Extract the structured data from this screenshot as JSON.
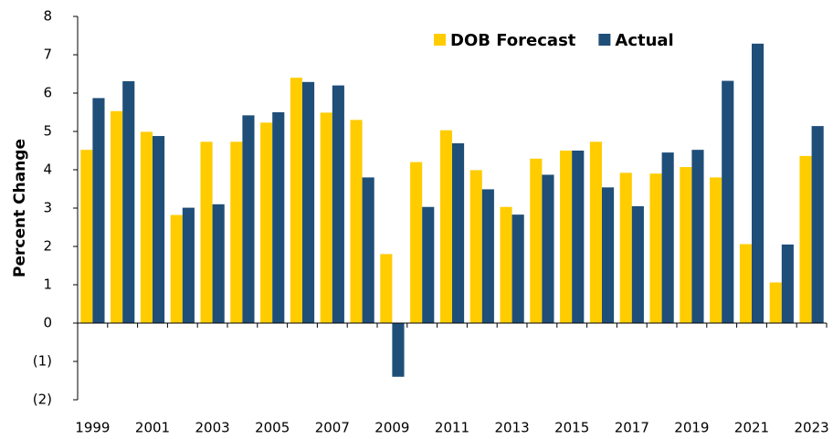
{
  "chart_data": {
    "type": "bar",
    "y_label": "Percent Change",
    "categories": [
      "1999",
      null,
      "2001",
      null,
      "2003",
      null,
      "2005",
      null,
      "2007",
      null,
      "2009",
      null,
      "2011",
      null,
      "2013",
      null,
      "2015",
      null,
      "2017",
      null,
      "2019",
      null,
      "2021",
      null,
      "2023"
    ],
    "series": [
      {
        "name": "DOB Forecast",
        "color": "#ffcc00",
        "values": [
          4.52,
          5.53,
          4.99,
          2.82,
          4.73,
          4.73,
          5.23,
          6.4,
          5.49,
          5.3,
          1.8,
          4.2,
          5.03,
          3.99,
          3.03,
          4.29,
          4.5,
          4.73,
          3.92,
          3.9,
          4.07,
          3.8,
          2.06,
          1.06,
          4.36
        ]
      },
      {
        "name": "Actual",
        "color": "#1f4e79",
        "values": [
          5.87,
          6.31,
          4.88,
          3.01,
          3.1,
          5.42,
          5.5,
          6.29,
          6.2,
          3.8,
          -1.4,
          3.03,
          4.69,
          3.49,
          2.83,
          3.87,
          4.5,
          3.54,
          3.05,
          4.45,
          4.52,
          6.32,
          7.29,
          2.05,
          5.14
        ]
      }
    ],
    "ylim": [
      -2,
      8
    ],
    "yticks": [
      {
        "value": -2,
        "label": "(2)"
      },
      {
        "value": -1,
        "label": "(1)"
      },
      0,
      1,
      2,
      3,
      4,
      5,
      6,
      7,
      8
    ],
    "grid": false,
    "legend": "top-right"
  }
}
